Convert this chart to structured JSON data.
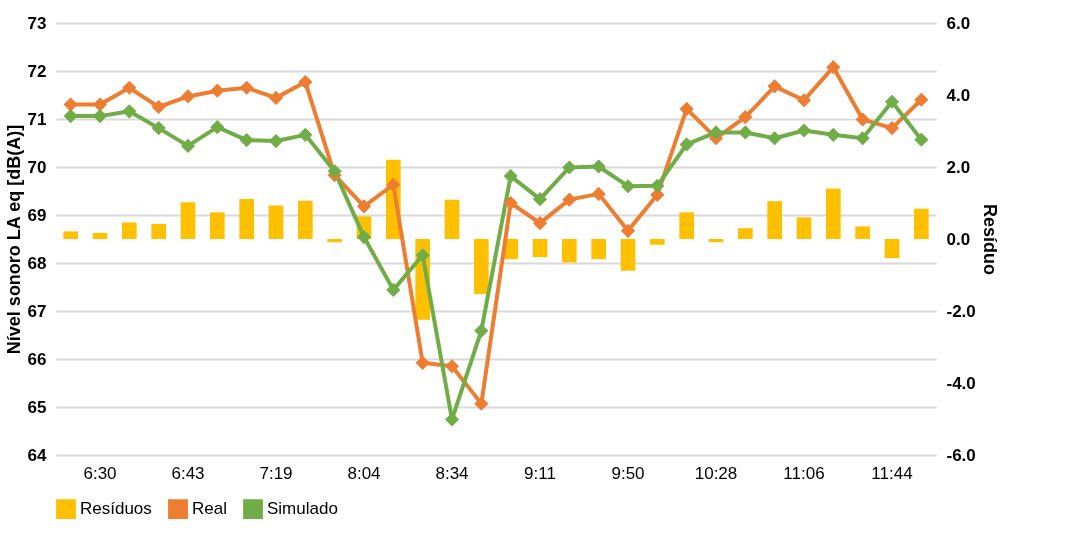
{
  "chart_data": {
    "type": "line",
    "ylabel": "Nível sonoro LA eq [dB(A)]",
    "y2label": "Resíduo",
    "categories": [
      null,
      "6:30",
      null,
      null,
      "6:43",
      null,
      null,
      "7:19",
      null,
      null,
      "8:04",
      null,
      null,
      "8:34",
      null,
      null,
      "9:11",
      null,
      null,
      "9:50",
      null,
      null,
      "10:28",
      null,
      null,
      "11:06",
      null,
      null,
      "11:44",
      null
    ],
    "series": [
      {
        "name": "Resíduos",
        "type": "bar",
        "axis": "y2",
        "color": "#ffc000",
        "values": [
          0.21,
          0.17,
          0.46,
          0.42,
          1.02,
          0.74,
          1.11,
          0.93,
          1.06,
          -0.09,
          0.63,
          2.2,
          -2.24,
          1.09,
          -1.53,
          -0.56,
          -0.5,
          -0.65,
          -0.56,
          -0.88,
          -0.16,
          0.74,
          -0.09,
          0.3,
          1.05,
          0.6,
          1.4,
          0.35,
          -0.53,
          0.84
        ]
      },
      {
        "name": "Real",
        "color": "#ed7d31",
        "values": [
          71.3,
          71.3,
          71.65,
          71.25,
          71.47,
          71.59,
          71.65,
          71.44,
          71.77,
          69.83,
          69.18,
          69.63,
          65.92,
          65.85,
          65.07,
          69.25,
          68.83,
          69.32,
          69.44,
          68.67,
          69.42,
          71.21,
          70.6,
          71.04,
          71.68,
          71.39,
          72.08,
          70.99,
          70.81,
          71.4
        ]
      },
      {
        "name": "Simulado",
        "color": "#70ad47",
        "values": [
          71.06,
          71.06,
          71.16,
          70.81,
          70.44,
          70.83,
          70.56,
          70.54,
          70.67,
          69.91,
          68.54,
          67.44,
          68.16,
          64.74,
          66.59,
          69.81,
          69.33,
          69.99,
          70.01,
          69.6,
          69.61,
          70.47,
          70.72,
          70.72,
          70.6,
          70.76,
          70.67,
          70.6,
          71.36,
          70.57
        ]
      }
    ],
    "ylim": [
      64,
      73
    ],
    "yticks": [
      64,
      65,
      66,
      67,
      68,
      69,
      70,
      71,
      72,
      73
    ],
    "y2lim": [
      -6,
      6
    ],
    "y2ticks": [
      {
        "value": -6,
        "label": "-6.0"
      },
      {
        "value": -4,
        "label": "-4.0"
      },
      {
        "value": -2,
        "label": "-2.0"
      },
      {
        "value": 0,
        "label": "0.0"
      },
      {
        "value": 2,
        "label": "2.0"
      },
      {
        "value": 4,
        "label": "4.0"
      },
      {
        "value": 6,
        "label": "6.0"
      }
    ],
    "grid": "y",
    "legend": "bottom",
    "marker": "diamond",
    "line_style": "solid"
  }
}
